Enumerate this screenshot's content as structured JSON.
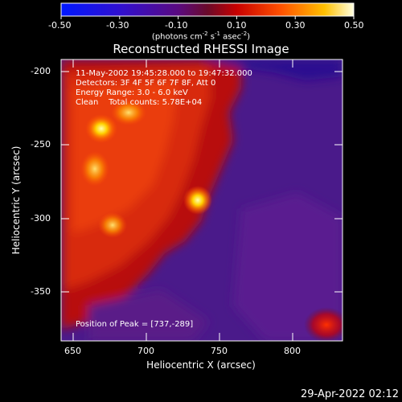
{
  "colorbar": {
    "tick_labels": [
      "-0.50",
      "-0.30",
      "-0.10",
      "0.10",
      "0.30",
      "0.50"
    ],
    "units_prefix": "(photons cm",
    "units_exp1": "-2",
    "units_mid1": " s",
    "units_exp2": "-1",
    "units_mid2": " asec",
    "units_exp3": "-2",
    "units_suffix": ")",
    "range": [
      -0.5,
      0.5
    ]
  },
  "title": "Reconstructed RHESSI Image",
  "info": {
    "time_range": "11-May-2002 19:45:28.000 to 19:47:32.000",
    "detectors": "Detectors: 3F 4F 5F 6F 7F 8F, Att 0",
    "energy": "Energy Range: 3.0 - 6.0 keV",
    "clean": "Clean    Total counts: 5.78E+04"
  },
  "peak_label": "Position of Peak = [737,-289]",
  "x_axis": {
    "label": "Heliocentric X (arcsec)",
    "ticks": [
      "650",
      "700",
      "750",
      "800"
    ],
    "range": [
      644,
      836
    ]
  },
  "y_axis": {
    "label": "Heliocentric Y (arcsec)",
    "ticks": [
      "-200",
      "-250",
      "-300",
      "-350"
    ],
    "range": [
      -384,
      -192
    ]
  },
  "timestamp": "29-Apr-2022 02:12"
}
